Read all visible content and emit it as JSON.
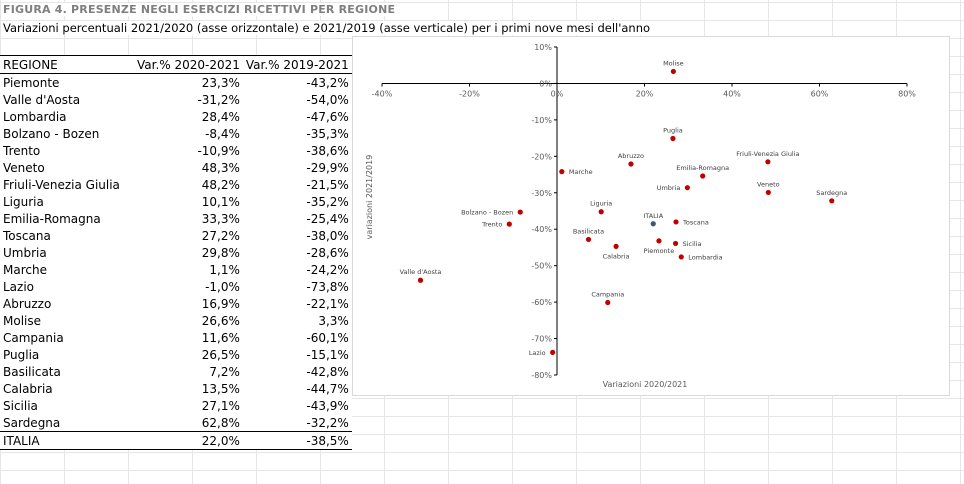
{
  "title": "FIGURA 4. PRESENZE NEGLI ESERCIZI RICETTIVI PER REGIONE",
  "subtitle": "Variazioni percentuali 2021/2020 (asse orizzontale) e 2021/2019 (asse verticale) per i primi nove mesi dell'anno",
  "table": {
    "headers": [
      "REGIONE",
      "Var.% 2020-2021",
      "Var.% 2019-2021"
    ],
    "rows": [
      [
        "Piemonte",
        "23,3%",
        "-43,2%"
      ],
      [
        "Valle d'Aosta",
        "-31,2%",
        "-54,0%"
      ],
      [
        "Lombardia",
        "28,4%",
        "-47,6%"
      ],
      [
        "Bolzano - Bozen",
        "-8,4%",
        "-35,3%"
      ],
      [
        "Trento",
        "-10,9%",
        "-38,6%"
      ],
      [
        "Veneto",
        "48,3%",
        "-29,9%"
      ],
      [
        "Friuli-Venezia Giulia",
        "48,2%",
        "-21,5%"
      ],
      [
        "Liguria",
        "10,1%",
        "-35,2%"
      ],
      [
        "Emilia-Romagna",
        "33,3%",
        "-25,4%"
      ],
      [
        "Toscana",
        "27,2%",
        "-38,0%"
      ],
      [
        "Umbria",
        "29,8%",
        "-28,6%"
      ],
      [
        "Marche",
        "1,1%",
        "-24,2%"
      ],
      [
        "Lazio",
        "-1,0%",
        "-73,8%"
      ],
      [
        "Abruzzo",
        "16,9%",
        "-22,1%"
      ],
      [
        "Molise",
        "26,6%",
        "3,3%"
      ],
      [
        "Campania",
        "11,6%",
        "-60,1%"
      ],
      [
        "Puglia",
        "26,5%",
        "-15,1%"
      ],
      [
        "Basilicata",
        "7,2%",
        "-42,8%"
      ],
      [
        "Calabria",
        "13,5%",
        "-44,7%"
      ],
      [
        "Sicilia",
        "27,1%",
        "-43,9%"
      ],
      [
        "Sardegna",
        "62,8%",
        "-32,2%"
      ]
    ],
    "total": [
      "ITALIA",
      "22,0%",
      "-38,5%"
    ]
  },
  "chart_data": {
    "type": "scatter",
    "xlabel": "Variazioni 2020/2021",
    "ylabel": "variazioni 2021/2019",
    "xlim": [
      -40,
      80
    ],
    "ylim": [
      -80,
      10
    ],
    "x_ticks": [
      "-40%",
      "-20%",
      "0%",
      "20%",
      "40%",
      "60%",
      "80%"
    ],
    "y_ticks": [
      "10%",
      "0%",
      "-10%",
      "-20%",
      "-30%",
      "-40%",
      "-50%",
      "-60%",
      "-70%",
      "-80%"
    ],
    "grid": false,
    "point_color": "#c00000",
    "total_color": "#44546a",
    "points": [
      {
        "label": "Piemonte",
        "x": 23.3,
        "y": -43.2,
        "pos": "below"
      },
      {
        "label": "Valle d'Aosta",
        "x": -31.2,
        "y": -54.0,
        "pos": "above"
      },
      {
        "label": "Lombardia",
        "x": 28.4,
        "y": -47.6,
        "pos": "right"
      },
      {
        "label": "Bolzano - Bozen",
        "x": -8.4,
        "y": -35.3,
        "pos": "left"
      },
      {
        "label": "Trento",
        "x": -10.9,
        "y": -38.6,
        "pos": "left"
      },
      {
        "label": "Veneto",
        "x": 48.3,
        "y": -29.9,
        "pos": "above"
      },
      {
        "label": "Friuli-Venezia Giulia",
        "x": 48.2,
        "y": -21.5,
        "pos": "above"
      },
      {
        "label": "Liguria",
        "x": 10.1,
        "y": -35.2,
        "pos": "above"
      },
      {
        "label": "Emilia-Romagna",
        "x": 33.3,
        "y": -25.4,
        "pos": "above"
      },
      {
        "label": "Toscana",
        "x": 27.2,
        "y": -38.0,
        "pos": "right"
      },
      {
        "label": "Umbria",
        "x": 29.8,
        "y": -28.6,
        "pos": "left"
      },
      {
        "label": "Marche",
        "x": 1.1,
        "y": -24.2,
        "pos": "right"
      },
      {
        "label": "Lazio",
        "x": -1.0,
        "y": -73.8,
        "pos": "left"
      },
      {
        "label": "Abruzzo",
        "x": 16.9,
        "y": -22.1,
        "pos": "above"
      },
      {
        "label": "Molise",
        "x": 26.6,
        "y": 3.3,
        "pos": "above"
      },
      {
        "label": "Campania",
        "x": 11.6,
        "y": -60.1,
        "pos": "above"
      },
      {
        "label": "Puglia",
        "x": 26.5,
        "y": -15.1,
        "pos": "above"
      },
      {
        "label": "Basilicata",
        "x": 7.2,
        "y": -42.8,
        "pos": "above"
      },
      {
        "label": "Calabria",
        "x": 13.5,
        "y": -44.7,
        "pos": "below"
      },
      {
        "label": "Sicilia",
        "x": 27.1,
        "y": -43.9,
        "pos": "right"
      },
      {
        "label": "Sardegna",
        "x": 62.8,
        "y": -32.2,
        "pos": "above"
      },
      {
        "label": "ITALIA",
        "x": 22.0,
        "y": -38.5,
        "pos": "above",
        "total": true
      }
    ]
  }
}
